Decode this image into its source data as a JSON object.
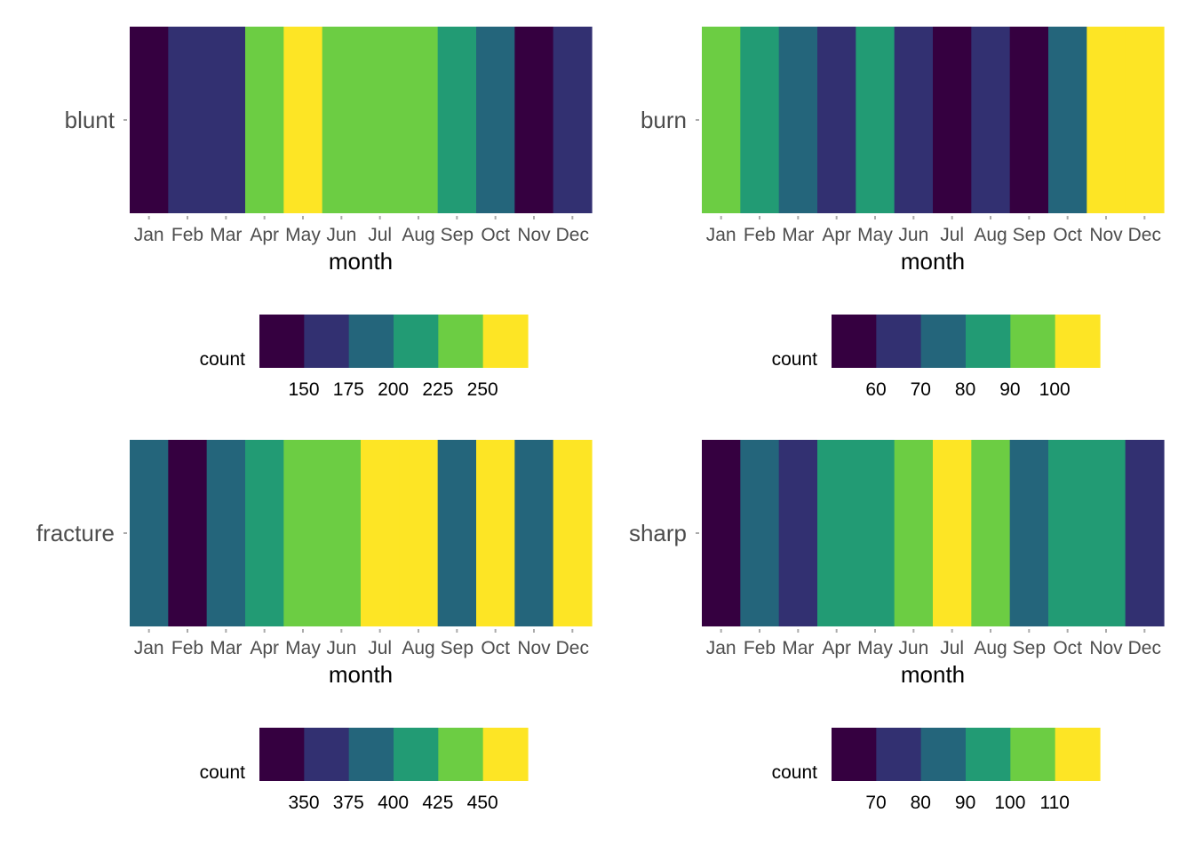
{
  "palette": [
    "#350040",
    "#323071",
    "#24657B",
    "#229B74",
    "#6CCD43",
    "#FDE525"
  ],
  "chart_data": [
    {
      "type": "heatmap",
      "ylabel": "blunt",
      "xlabel": "month",
      "categories": [
        "Jan",
        "Feb",
        "Mar",
        "Apr",
        "May",
        "Jun",
        "Jul",
        "Aug",
        "Sep",
        "Oct",
        "Nov",
        "Dec"
      ],
      "color_bins": [
        0,
        1,
        1,
        4,
        5,
        4,
        4,
        4,
        3,
        2,
        0,
        1
      ],
      "legend": {
        "title": "count",
        "ticks": [
          "150",
          "175",
          "200",
          "225",
          "250"
        ]
      }
    },
    {
      "type": "heatmap",
      "ylabel": "burn",
      "xlabel": "month",
      "categories": [
        "Jan",
        "Feb",
        "Mar",
        "Apr",
        "May",
        "Jun",
        "Jul",
        "Aug",
        "Sep",
        "Oct",
        "Nov",
        "Dec"
      ],
      "color_bins": [
        4,
        3,
        2,
        1,
        3,
        1,
        0,
        1,
        0,
        2,
        5,
        5
      ],
      "legend": {
        "title": "count",
        "ticks": [
          "60",
          "70",
          "80",
          "90",
          "100"
        ]
      }
    },
    {
      "type": "heatmap",
      "ylabel": "fracture",
      "xlabel": "month",
      "categories": [
        "Jan",
        "Feb",
        "Mar",
        "Apr",
        "May",
        "Jun",
        "Jul",
        "Aug",
        "Sep",
        "Oct",
        "Nov",
        "Dec"
      ],
      "color_bins": [
        2,
        0,
        2,
        3,
        4,
        4,
        5,
        5,
        2,
        5,
        2,
        5
      ],
      "legend": {
        "title": "count",
        "ticks": [
          "350",
          "375",
          "400",
          "425",
          "450"
        ]
      }
    },
    {
      "type": "heatmap",
      "ylabel": "sharp",
      "xlabel": "month",
      "categories": [
        "Jan",
        "Feb",
        "Mar",
        "Apr",
        "May",
        "Jun",
        "Jul",
        "Aug",
        "Sep",
        "Oct",
        "Nov",
        "Dec"
      ],
      "color_bins": [
        0,
        2,
        1,
        3,
        3,
        4,
        5,
        4,
        2,
        3,
        3,
        1
      ],
      "legend": {
        "title": "count",
        "ticks": [
          "70",
          "80",
          "90",
          "100",
          "110"
        ]
      }
    }
  ]
}
